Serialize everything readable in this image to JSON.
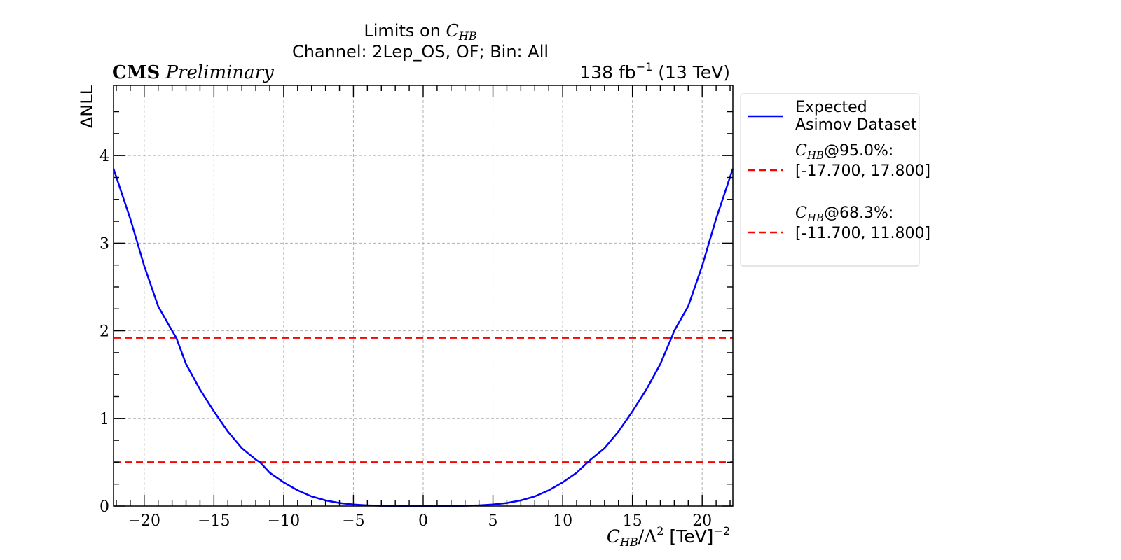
{
  "header": {
    "title_prefix": "Limits on ",
    "title_math_main": "C",
    "title_math_sub": "HB",
    "subtitle": "Channel: 2Lep_OS, OF; Bin: All",
    "cms_bold": "CMS",
    "cms_italic": "Preliminary",
    "lumi_prefix": "138 fb",
    "lumi_sup": "−1",
    "lumi_suffix": " (13 TeV)"
  },
  "chart_data": {
    "type": "line",
    "xlabel_main": "C",
    "xlabel_sub": "HB",
    "xlabel_mid": "/Λ",
    "xlabel_sup2": "2",
    "xlabel_unit": " [TeV]",
    "xlabel_unit_sup": "−2",
    "ylabel": "ΔNLL",
    "xlim": [
      -22.2,
      22.2
    ],
    "ylim": [
      0,
      4.8
    ],
    "x_ticks": [
      -20,
      -15,
      -10,
      -5,
      0,
      5,
      10,
      15,
      20
    ],
    "x_tick_labels": [
      "−20",
      "−15",
      "−10",
      "−5",
      "0",
      "5",
      "10",
      "15",
      "20"
    ],
    "y_ticks": [
      0,
      1,
      2,
      3,
      4
    ],
    "y_tick_labels": [
      "0",
      "1",
      "2",
      "3",
      "4"
    ],
    "grid": true,
    "legend_position": "outside-upper-right",
    "series": [
      {
        "name_line1": "Expected",
        "name_line2": "Asimov Dataset",
        "color": "#0000ff",
        "style": "solid",
        "x": [
          -22.2,
          -21,
          -20,
          -19,
          -18,
          -17.7,
          -17,
          -16,
          -15,
          -14,
          -13,
          -12,
          -11.7,
          -11,
          -10,
          -9,
          -8,
          -7,
          -6,
          -5,
          -4,
          -3,
          -2,
          -1,
          0,
          1,
          2,
          3,
          4,
          5,
          6,
          7,
          8,
          9,
          10,
          11,
          11.8,
          12,
          13,
          14,
          15,
          16,
          17,
          17.8,
          18,
          19,
          20,
          21,
          22.2
        ],
        "y": [
          3.85,
          3.28,
          2.74,
          2.28,
          2.0,
          1.92,
          1.62,
          1.33,
          1.08,
          0.85,
          0.66,
          0.53,
          0.5,
          0.38,
          0.27,
          0.18,
          0.11,
          0.065,
          0.035,
          0.018,
          0.008,
          0.003,
          0.001,
          0.0,
          0.0,
          0.0,
          0.001,
          0.003,
          0.008,
          0.018,
          0.035,
          0.065,
          0.11,
          0.18,
          0.27,
          0.38,
          0.5,
          0.53,
          0.66,
          0.85,
          1.08,
          1.33,
          1.62,
          1.92,
          2.0,
          2.28,
          2.74,
          3.28,
          3.85
        ]
      }
    ],
    "reference_lines": [
      {
        "y": 1.92,
        "color": "#ff0000",
        "style": "dashed",
        "label_math_main": "C",
        "label_math_sub": "HB",
        "label_pct": "@95.0%:",
        "label_interval": "[-17.700, 17.800]"
      },
      {
        "y": 0.5,
        "color": "#ff0000",
        "style": "dashed",
        "label_math_main": "C",
        "label_math_sub": "HB",
        "label_pct": "@68.3%:",
        "label_interval": "[-11.700, 11.800]"
      }
    ]
  }
}
